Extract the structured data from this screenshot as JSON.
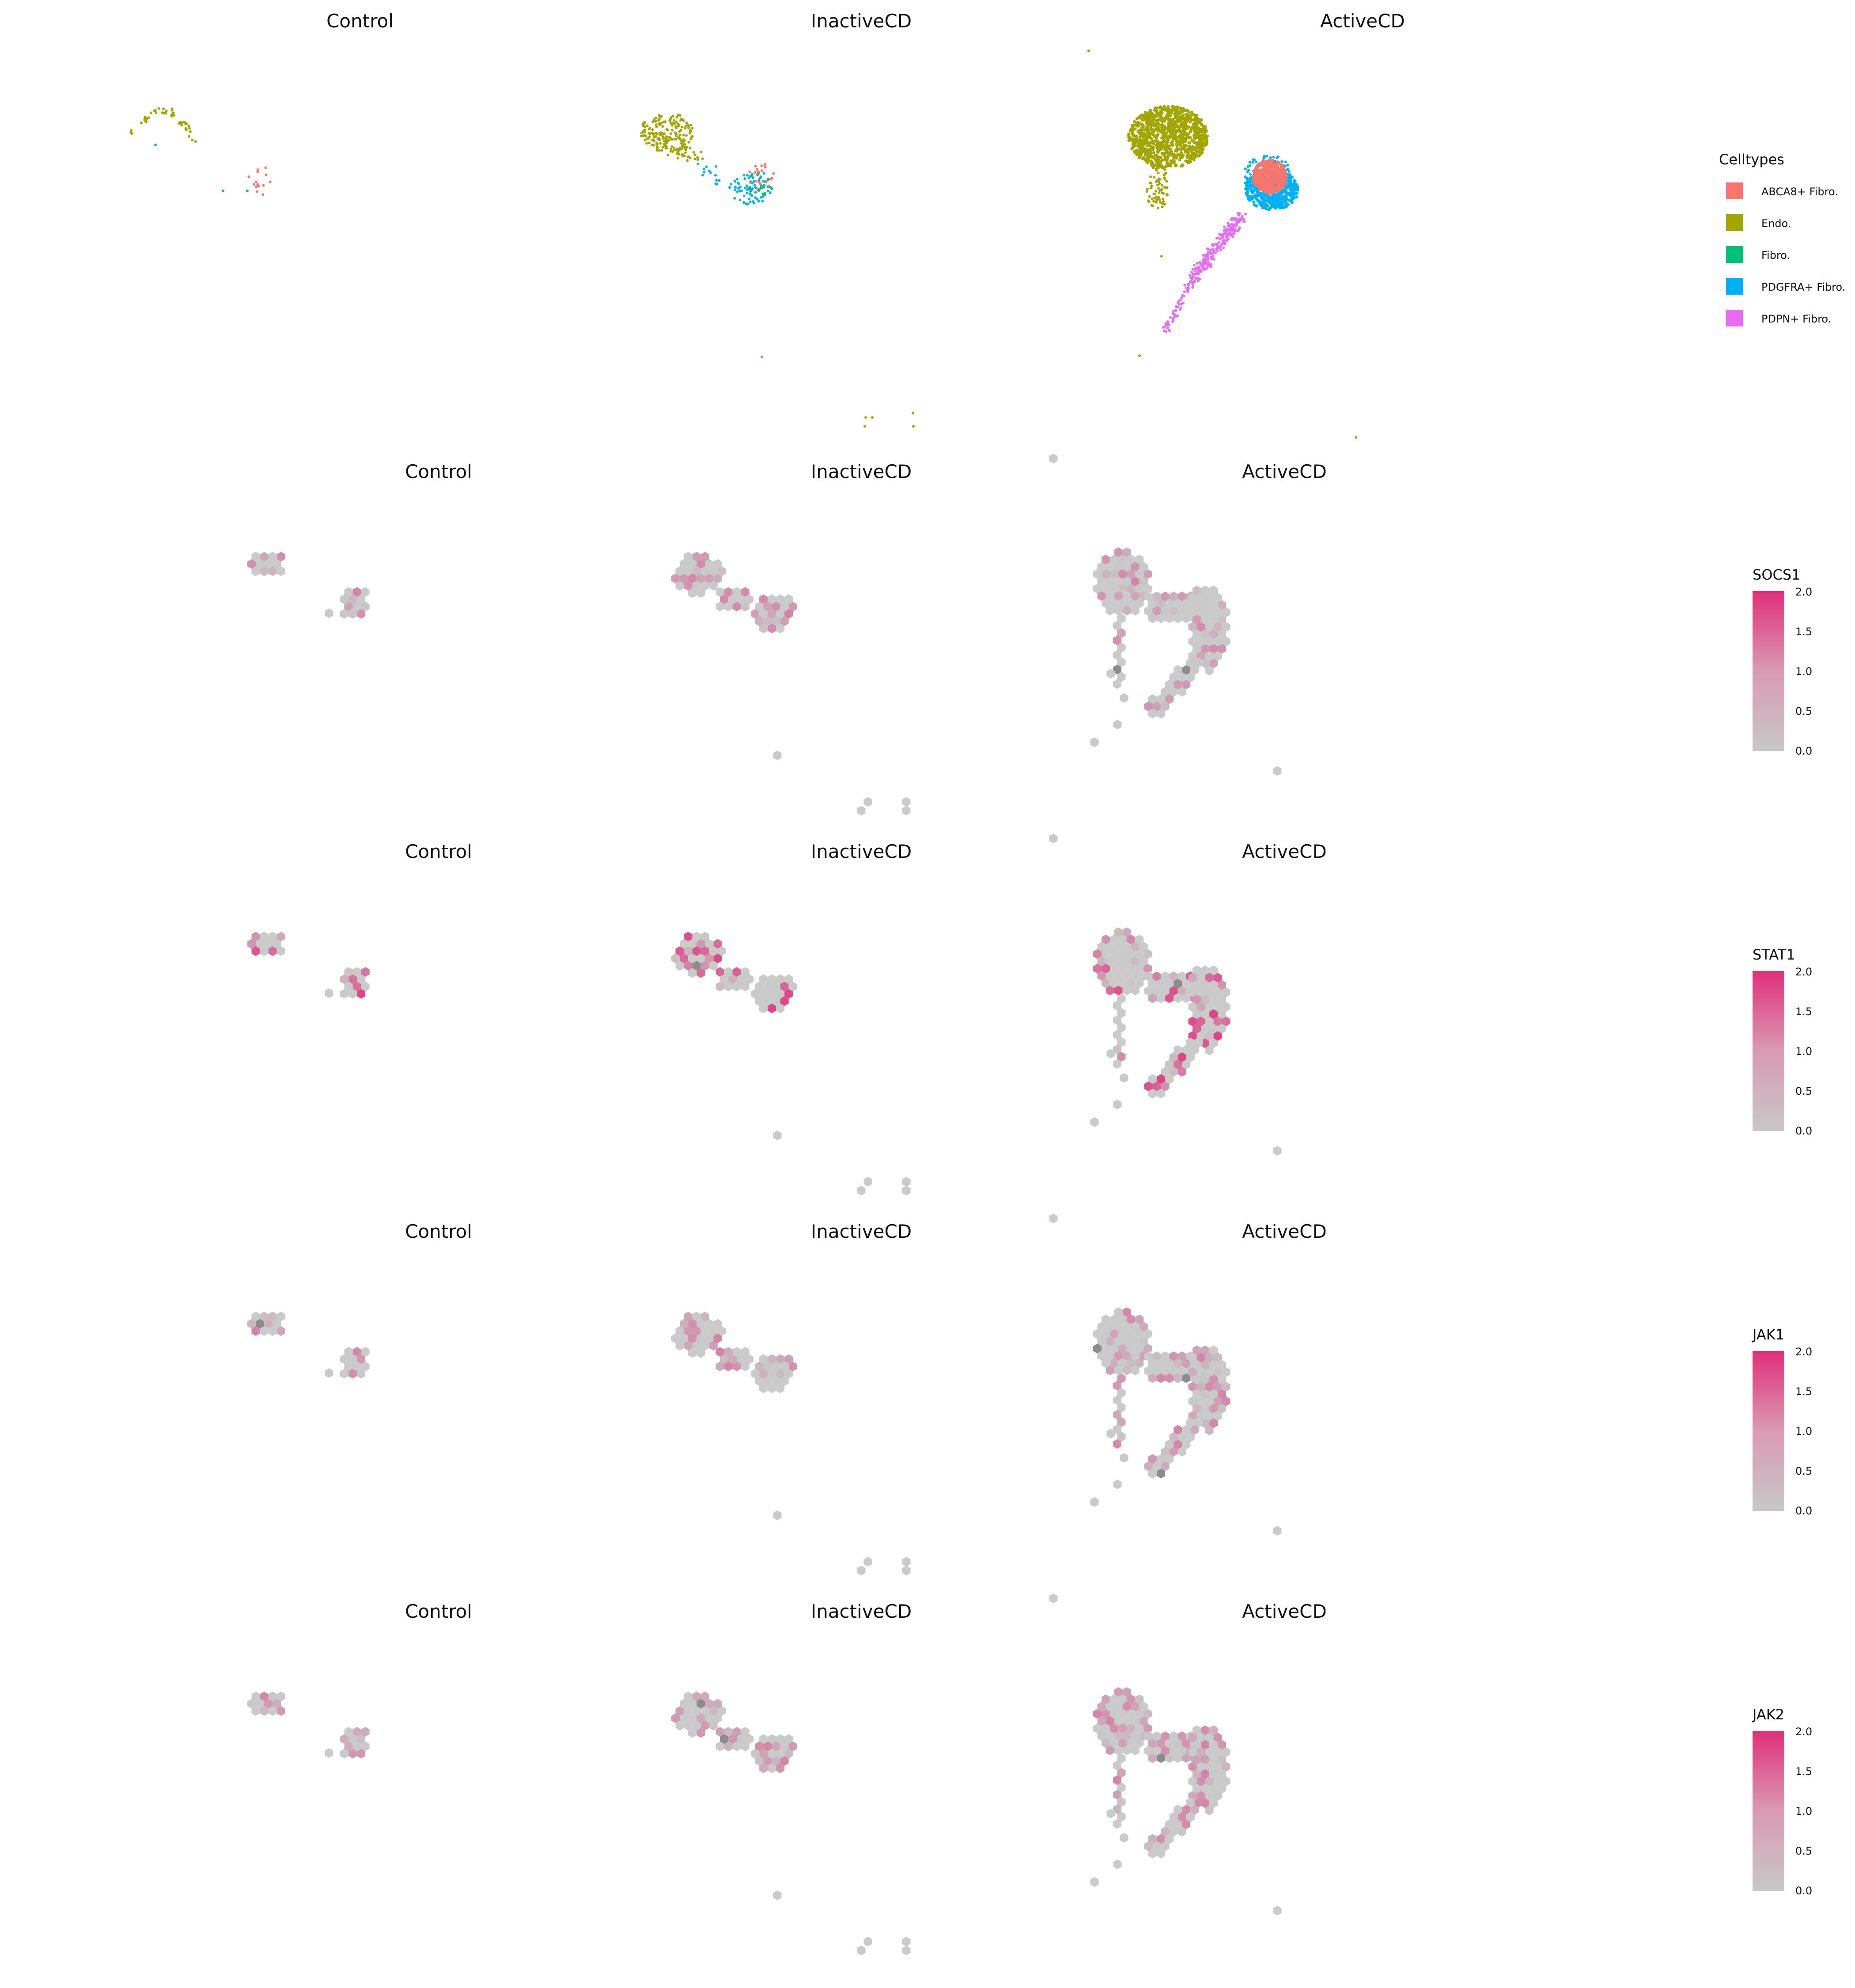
{
  "chart_data": [
    {
      "type": "scatter",
      "description_row": "celltype UMAP",
      "panels": [
        "Control",
        "InactiveCD",
        "ActiveCD"
      ],
      "legend": {
        "title": "Celltypes",
        "items": [
          {
            "label": "ABCA8+ Fibro.",
            "color": "#F8766D"
          },
          {
            "label": "Endo.",
            "color": "#A3A500"
          },
          {
            "label": "Fibro.",
            "color": "#00BF7D"
          },
          {
            "label": "PDGFRA+ Fibro.",
            "color": "#00B0F6"
          },
          {
            "label": "PDPN+ Fibro.",
            "color": "#E76BF3"
          }
        ]
      }
    },
    {
      "type": "heatmap",
      "feature": "SOCS1",
      "panels": [
        "Control",
        "InactiveCD",
        "ActiveCD"
      ],
      "colorbar": {
        "title": "SOCS1",
        "range": [
          0,
          2
        ],
        "ticks": [
          "2.0",
          "1.5",
          "1.0",
          "0.5",
          "0.0"
        ],
        "low": "#C8C8C8",
        "high": "#E0307A"
      }
    },
    {
      "type": "heatmap",
      "feature": "STAT1",
      "panels": [
        "Control",
        "InactiveCD",
        "ActiveCD"
      ],
      "colorbar": {
        "title": "STAT1",
        "range": [
          0,
          2
        ],
        "ticks": [
          "2.0",
          "1.5",
          "1.0",
          "0.5",
          "0.0"
        ],
        "low": "#C8C8C8",
        "high": "#E0307A"
      }
    },
    {
      "type": "heatmap",
      "feature": "JAK1",
      "panels": [
        "Control",
        "InactiveCD",
        "ActiveCD"
      ],
      "colorbar": {
        "title": "JAK1",
        "range": [
          0,
          2
        ],
        "ticks": [
          "2.0",
          "1.5",
          "1.0",
          "0.5",
          "0.0"
        ],
        "low": "#C8C8C8",
        "high": "#E0307A"
      }
    },
    {
      "type": "heatmap",
      "feature": "JAK2",
      "panels": [
        "Control",
        "InactiveCD",
        "ActiveCD"
      ],
      "colorbar": {
        "title": "JAK2",
        "range": [
          0,
          2
        ],
        "ticks": [
          "2.0",
          "1.5",
          "1.0",
          "0.5",
          "0.0"
        ],
        "low": "#C8C8C8",
        "high": "#E0307A"
      }
    }
  ]
}
